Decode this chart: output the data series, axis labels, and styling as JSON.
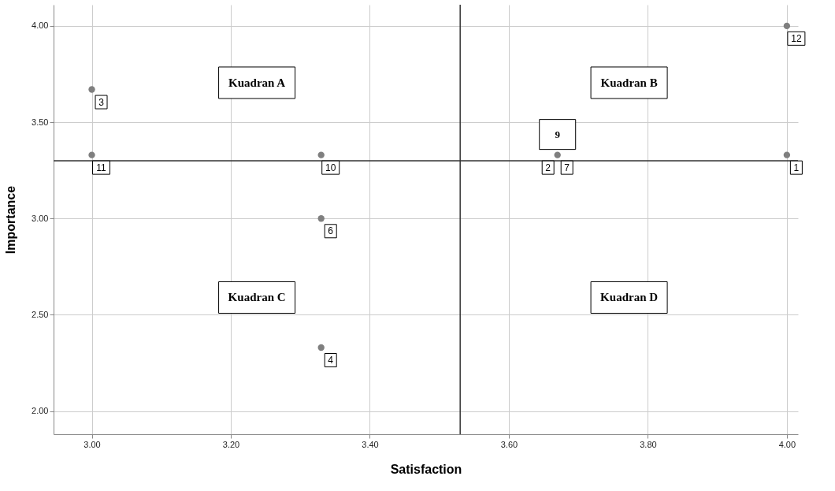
{
  "chart_data": {
    "type": "scatter",
    "xlabel": "Satisfaction",
    "ylabel": "Importance",
    "x": [
      3.0,
      3.0,
      3.33,
      3.33,
      3.33,
      3.67,
      4.0,
      4.0
    ],
    "series": [
      {
        "color": "#7f7f7f",
        "values": [
          3.67,
          3.33,
          3.33,
          3.0,
          2.33,
          3.33,
          4.0,
          3.33
        ]
      }
    ],
    "xlim": [
      2.945,
      4.016
    ],
    "ylim": [
      1.88,
      4.11
    ],
    "xticks": [
      {
        "value": 3.0,
        "label": "3.00"
      },
      {
        "value": 3.2,
        "label": "3.20"
      },
      {
        "value": 3.4,
        "label": "3.40"
      },
      {
        "value": 3.6,
        "label": "3.60"
      },
      {
        "value": 3.8,
        "label": "3.80"
      },
      {
        "value": 4.0,
        "label": "4.00"
      }
    ],
    "yticks": [
      {
        "value": 2.0,
        "label": "2.00"
      },
      {
        "value": 2.5,
        "label": "2.50"
      },
      {
        "value": 3.0,
        "label": "3.00"
      },
      {
        "value": 3.5,
        "label": "3.50"
      },
      {
        "value": 4.0,
        "label": "4.00"
      }
    ],
    "grid": true,
    "marker": "circle",
    "legend": false,
    "ref_lines": [
      {
        "axis": "x",
        "value": 3.53,
        "color": "#333333"
      },
      {
        "axis": "y",
        "value": 3.3,
        "color": "#333333"
      }
    ],
    "annotations": [
      {
        "text": "3",
        "x": 3.0,
        "y": 3.67
      },
      {
        "text": "11",
        "x": 3.0,
        "y": 3.33
      },
      {
        "text": "10",
        "x": 3.33,
        "y": 3.33
      },
      {
        "text": "6",
        "x": 3.33,
        "y": 3.0
      },
      {
        "text": "4",
        "x": 3.33,
        "y": 2.33
      },
      {
        "text": "2",
        "x": 3.67,
        "y": 3.33
      },
      {
        "text": "7",
        "x": 3.67,
        "y": 3.33
      },
      {
        "text": "9",
        "x": 3.67,
        "y": 3.33
      },
      {
        "text": "12",
        "x": 4.0,
        "y": 4.0
      },
      {
        "text": "1",
        "x": 4.0,
        "y": 3.33
      },
      "Kuadran A",
      "Kuadran B",
      "Kuadran C",
      "Kuadran D"
    ]
  }
}
